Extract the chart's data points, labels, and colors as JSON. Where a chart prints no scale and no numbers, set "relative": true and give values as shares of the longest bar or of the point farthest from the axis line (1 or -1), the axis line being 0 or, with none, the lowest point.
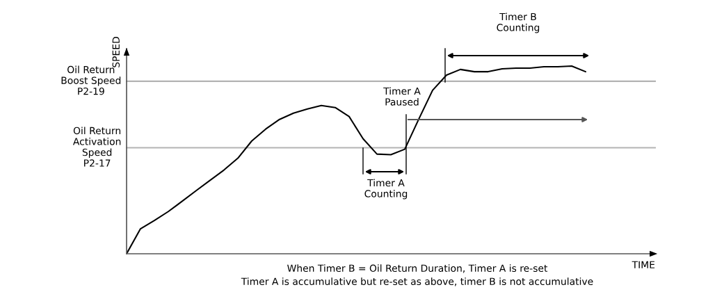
{
  "chart_data": {
    "type": "line",
    "relative": true,
    "xlabel": "TIME",
    "ylabel": "SPEED",
    "categories": [
      null,
      null,
      null,
      null,
      null,
      null,
      null,
      null,
      null,
      null,
      null,
      null,
      null,
      null,
      null,
      null,
      null,
      null,
      null,
      null,
      null,
      null,
      null,
      null,
      null,
      null,
      null,
      null,
      null,
      null,
      null,
      null,
      null,
      null,
      null,
      null,
      null,
      null,
      null
    ],
    "series": [
      {
        "color": "#000000",
        "values": [
          0,
          0.133,
          0.177,
          0.225,
          0.28,
          0.336,
          0.391,
          0.446,
          0.509,
          0.601,
          0.664,
          0.716,
          0.749,
          0.771,
          0.79,
          0.779,
          0.731,
          0.613,
          0.531,
          0.528,
          0.557,
          0.716,
          0.871,
          0.952,
          0.982,
          0.97,
          0.97,
          0.985,
          0.989,
          0.989,
          0.996,
          0.996,
          1,
          0.97,
          null,
          null,
          null,
          null,
          null
        ]
      }
    ],
    "ref_lines": [
      {
        "axis": "y",
        "value": 0.919,
        "label": "Oil Return\nBoost Speed\nP2-19",
        "color": "#b3b3b3"
      },
      {
        "axis": "y",
        "value": 0.565,
        "label": "Oil Return\nActivation\nSpeed\nP2-17",
        "color": "#b3b3b3"
      }
    ],
    "annotations": [
      "Timer B\nCounting",
      "Timer A\nPaused",
      "Timer A\nCounting",
      "When Timer B = Oil Return Duration, Timer A is re-set",
      "Timer A is accumulative but re-set as above, timer B is not accumulative"
    ],
    "grid": false,
    "legend": false,
    "marker": "none",
    "line_style": "solid"
  }
}
